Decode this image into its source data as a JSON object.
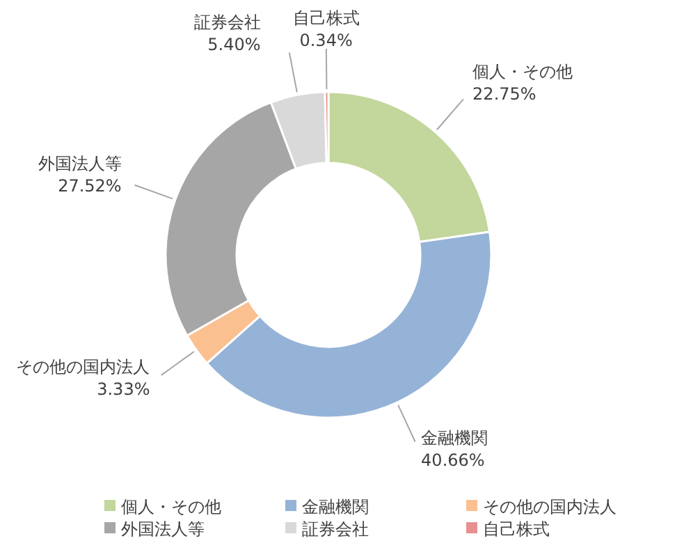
{
  "chart_data": {
    "type": "donut",
    "categories": [
      "個人・その他",
      "金融機関",
      "その他の国内法人",
      "外国法人等",
      "証券会社",
      "自己株式"
    ],
    "values": [
      22.75,
      40.66,
      3.33,
      27.52,
      5.4,
      0.34
    ],
    "colors": [
      "#c3d69b",
      "#95b3d7",
      "#fac090",
      "#a6a6a6",
      "#d9d9d9",
      "#e6908f"
    ],
    "value_labels": [
      "22.75%",
      "40.66%",
      "3.33%",
      "27.52%",
      "5.40%",
      "0.34%"
    ],
    "legend": "bottom"
  }
}
